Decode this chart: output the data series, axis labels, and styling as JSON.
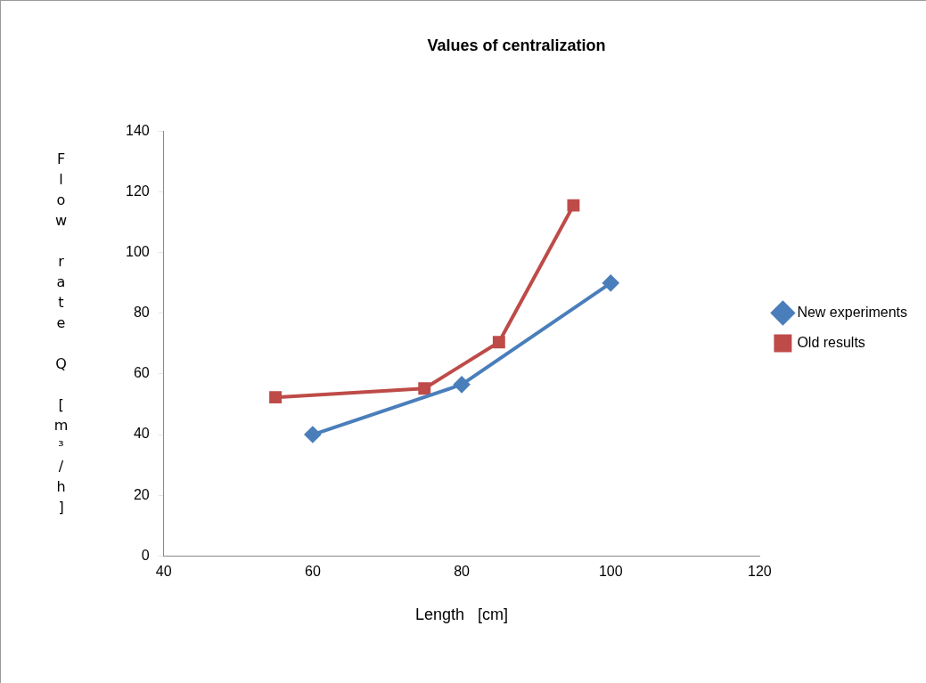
{
  "chart_data": {
    "type": "line",
    "title": "Values of centralization",
    "xlabel": "Length   [cm]",
    "ylabel": "Flow rate Q [m³/h]",
    "series": [
      {
        "name": "New experiments",
        "color": "#4a7ebb",
        "marker": "diamond",
        "x": [
          60,
          80,
          100
        ],
        "values": [
          40,
          56.5,
          90
        ]
      },
      {
        "name": "Old results",
        "color": "#be4b48",
        "marker": "square",
        "x": [
          55,
          75,
          85,
          95
        ],
        "values": [
          52.3,
          55.2,
          70.5,
          115.6
        ]
      }
    ],
    "xlim": [
      40,
      120
    ],
    "xticks": [
      40,
      60,
      80,
      100,
      120
    ],
    "ylim": [
      0,
      140
    ],
    "yticks": [
      0,
      20,
      40,
      60,
      80,
      100,
      120,
      140
    ],
    "grid": false,
    "legend": "right",
    "line_style": "solid"
  }
}
